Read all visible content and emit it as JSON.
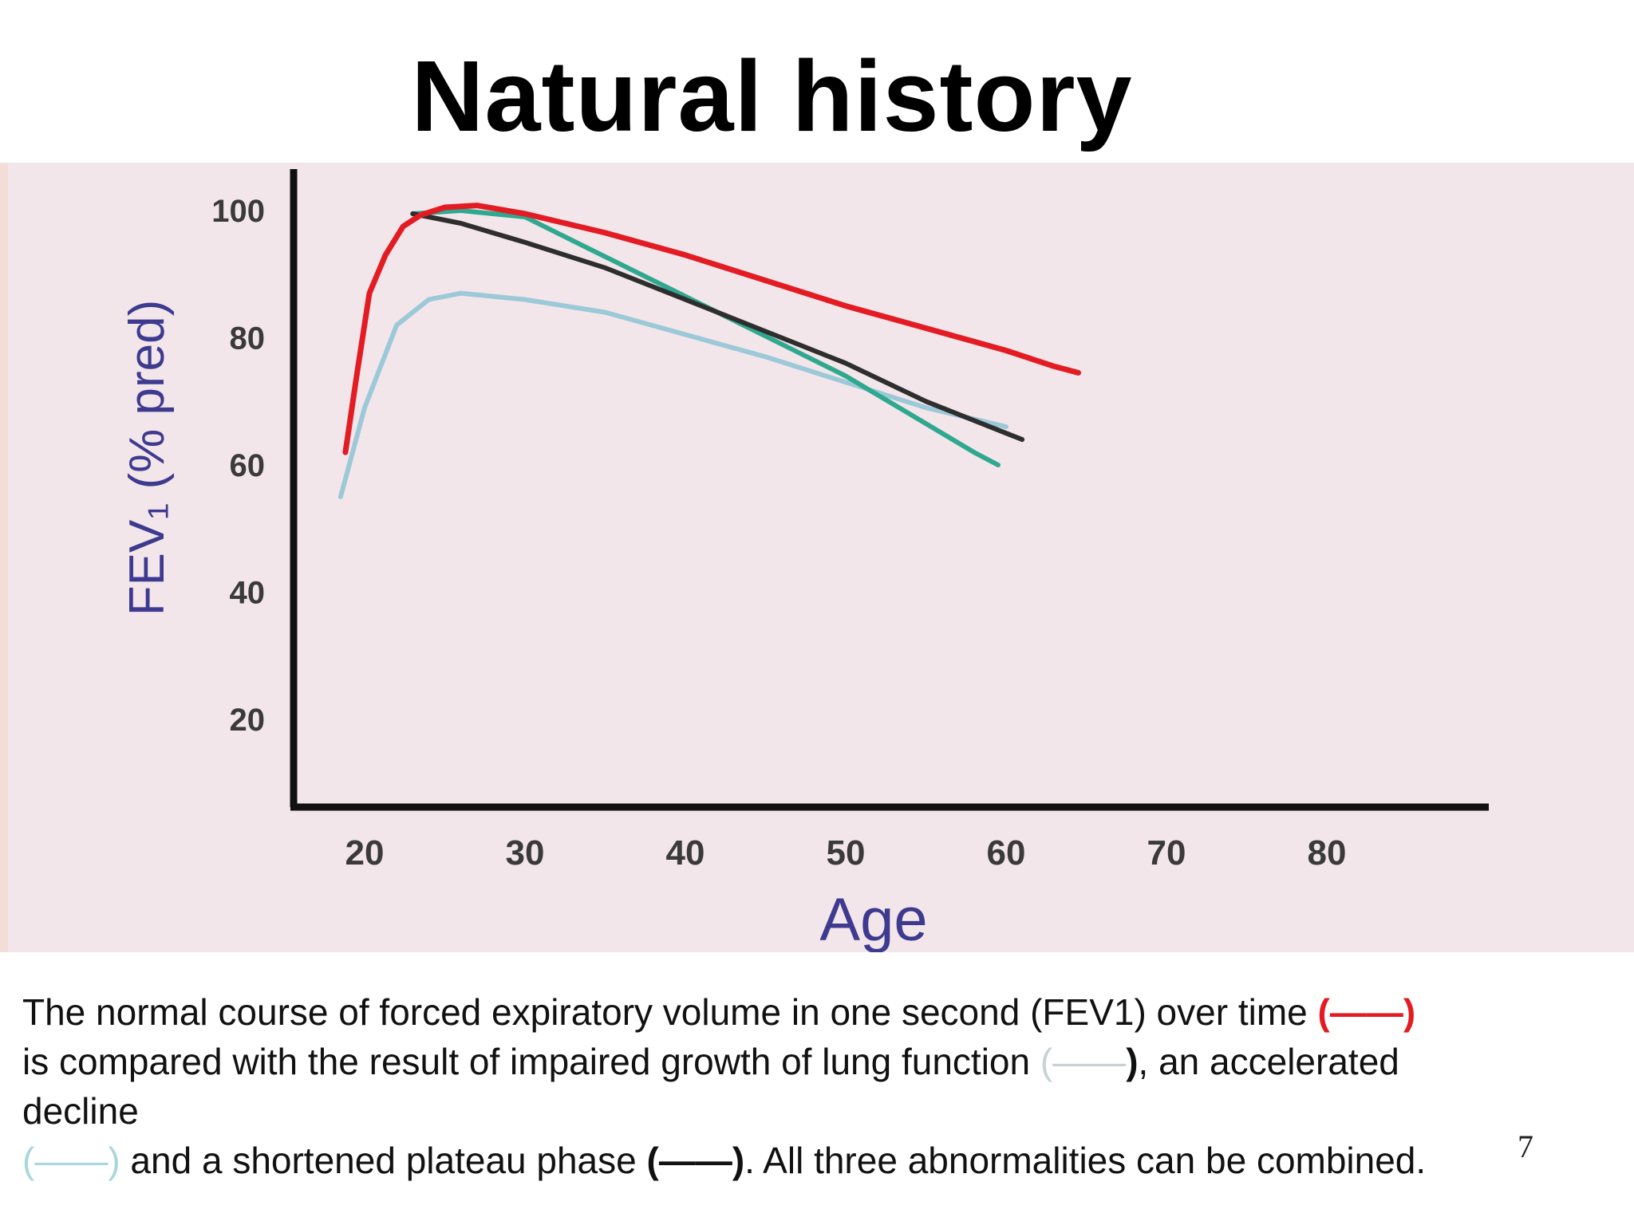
{
  "slide": {
    "title": "Natural history",
    "page_number": "7"
  },
  "caption": {
    "line1_text": "The normal course of forced expiratory volume in one second (FEV1) over time ",
    "line1_legend": "(——)",
    "line2_text": "is compared with the result of impaired growth of lung function ",
    "line2_legend_open": "(——",
    "line2_legend_close": ")",
    "line2_tail": ", an accelerated",
    "line3_text": "decline",
    "line4_legend": "(——)",
    "line4_text": " and a shortened plateau phase ",
    "line4_legend2": "(——)",
    "line4_tail": ". All three abnormalities can be combined."
  },
  "colors": {
    "panel": "#f3e6ea",
    "normal": "#e31b23",
    "impaired_growth": "#9cc9d8",
    "accelerated_decline": "#2fa88f",
    "shortened_plateau": "#2e2e2e",
    "axis_label": "#3d3a8f",
    "tick_label": "#3a3a3a"
  },
  "chart_data": {
    "type": "line",
    "xlabel": "Age",
    "ylabel": "FEV₁ (% pred)",
    "xlim": [
      15,
      90
    ],
    "ylim": [
      3,
      107
    ],
    "x_ticks": [
      20,
      30,
      40,
      50,
      60,
      70,
      80
    ],
    "y_ticks": [
      20,
      40,
      60,
      80,
      100
    ],
    "grid": false,
    "series": [
      {
        "key": "impaired_growth",
        "points": [
          [
            18.5,
            55
          ],
          [
            20,
            69
          ],
          [
            22,
            82
          ],
          [
            24,
            86
          ],
          [
            26,
            87
          ],
          [
            30,
            86
          ],
          [
            35,
            84
          ],
          [
            40,
            80.5
          ],
          [
            45,
            77
          ],
          [
            50,
            73
          ],
          [
            55,
            69
          ],
          [
            60,
            66
          ]
        ]
      },
      {
        "key": "accelerated_decline",
        "points": [
          [
            23,
            99.5
          ],
          [
            26,
            100
          ],
          [
            30,
            99
          ],
          [
            34,
            94
          ],
          [
            38,
            89
          ],
          [
            42,
            84
          ],
          [
            46,
            79
          ],
          [
            50,
            74
          ],
          [
            54,
            68
          ],
          [
            58,
            62
          ],
          [
            59.5,
            60
          ]
        ]
      },
      {
        "key": "shortened_plateau",
        "points": [
          [
            23,
            99.5
          ],
          [
            26,
            98
          ],
          [
            30,
            95
          ],
          [
            35,
            91
          ],
          [
            40,
            86
          ],
          [
            45,
            81
          ],
          [
            50,
            76
          ],
          [
            55,
            70
          ],
          [
            61,
            64
          ]
        ]
      },
      {
        "key": "normal",
        "points": [
          [
            18.8,
            62
          ],
          [
            19.5,
            74
          ],
          [
            20.3,
            87
          ],
          [
            21.3,
            93
          ],
          [
            22.4,
            97.5
          ],
          [
            23.5,
            99.3
          ],
          [
            25,
            100.5
          ],
          [
            27,
            100.8
          ],
          [
            30,
            99.5
          ],
          [
            35,
            96.5
          ],
          [
            40,
            93
          ],
          [
            45,
            89
          ],
          [
            50,
            85
          ],
          [
            55,
            81.5
          ],
          [
            60,
            78
          ],
          [
            63,
            75.5
          ],
          [
            64.5,
            74.5
          ]
        ]
      }
    ]
  }
}
